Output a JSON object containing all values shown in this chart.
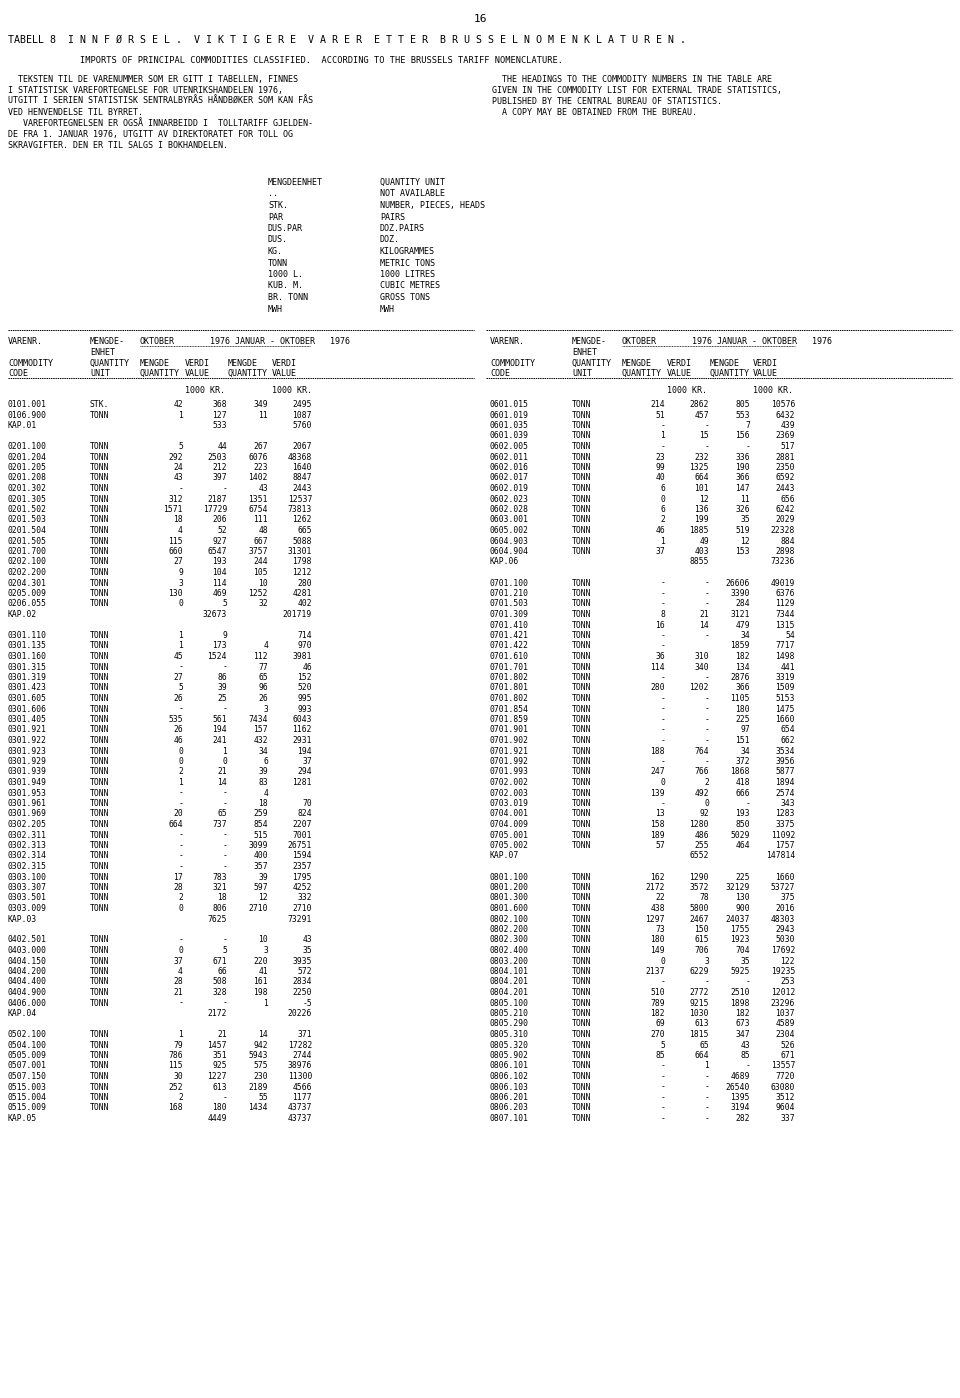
{
  "page_number": "16",
  "title": "TABELL 8  I N N F Ø R S E L .  V I K T I G E R E  V A R E R  E T T E R  B R U S S E L N O M E N K L A T U R E N .",
  "subtitle": "         IMPORTS OF PRINCIPAL COMMODITIES CLASSIFIED.  ACCORDING TO THE BRUSSELS TARIFF NOMENCLATURE.",
  "left_para": [
    "  TEKSTEN TIL DE VARENUMMER SOM ER GITT I TABELLEN, FINNES",
    "I STATISTISK VAREFORTEGNELSE FOR UTENRIKSHANDELEN 1976,",
    "UTGITT I SERIEN STATISTISK SENTRALBYRÅS HÅNDBØKER SOM KAN FÅS",
    "VED HENVENDELSE TIL BYRRET.",
    "   VAREFORTEGNELSEN ER OGSÅ INNARBEIDD I  TOLLTARIFF GJELDEN-",
    "DE FRA 1. JANUAR 1976, UTGITT AV DIREKTORATET FOR TOLL OG",
    "SKRAVGIFTER. DEN ER TIL SALGS I BOKHANDELEN."
  ],
  "right_para": [
    "  THE HEADINGS TO THE COMMODITY NUMBERS IN THE TABLE ARE",
    "GIVEN IN THE COMMODITY LIST FOR EXTERNAL TRADE STATISTICS,",
    "PUBLISHED BY THE CENTRAL BUREAU OF STATISTICS.",
    "  A COPY MAY BE OBTAINED FROM THE BUREAU."
  ],
  "units_left": [
    "MENGDEENHET",
    "..",
    "STK.",
    "PAR",
    "DUS.PAR",
    "DUS.",
    "KG.",
    "TONN",
    "1000 L.",
    "KUB. M.",
    "BR. TONN",
    "MWH"
  ],
  "units_right": [
    "QUANTITY UNIT",
    "NOT AVAILABLE",
    "NUMBER, PIECES, HEADS",
    "PAIRS",
    "DOZ.PAIRS",
    "DOZ.",
    "KILOGRAMMES",
    "METRIC TONS",
    "1000 LITRES",
    "CUBIC METRES",
    "GROSS TONS",
    "MWH"
  ],
  "table_data": [
    [
      "0101.001",
      "STK.",
      "42",
      "368",
      "349",
      "2495",
      "0601.015",
      "TONN",
      "214",
      "2862",
      "805",
      "10576"
    ],
    [
      "0106.900",
      "TONN",
      "1",
      "127",
      "11",
      "1087",
      "0601.019",
      "TONN",
      "51",
      "457",
      "553",
      "6432"
    ],
    [
      "KAP.01",
      "",
      "",
      "533",
      "",
      "5760",
      "0601.035",
      "TONN",
      "-",
      "-",
      "7",
      "439"
    ],
    [
      "",
      "",
      "",
      "",
      "",
      "",
      "0601.039",
      "TONN",
      "1",
      "15",
      "156",
      "2369"
    ],
    [
      "0201.100",
      "TONN",
      "5",
      "44",
      "267",
      "2067",
      "0602.005",
      "TONN",
      "-",
      "-",
      "-",
      "517"
    ],
    [
      "0201.204",
      "TONN",
      "292",
      "2503",
      "6076",
      "48368",
      "0602.011",
      "TONN",
      "23",
      "232",
      "336",
      "2881"
    ],
    [
      "0201.205",
      "TONN",
      "24",
      "212",
      "223",
      "1640",
      "0602.016",
      "TONN",
      "99",
      "1325",
      "190",
      "2350"
    ],
    [
      "0201.208",
      "TONN",
      "43",
      "397",
      "1402",
      "8847",
      "0602.017",
      "TONN",
      "40",
      "664",
      "366",
      "6592"
    ],
    [
      "0201.302",
      "TONN",
      "-",
      "-",
      "43",
      "2443",
      "0602.019",
      "TONN",
      "6",
      "101",
      "147",
      "2443"
    ],
    [
      "0201.305",
      "TONN",
      "312",
      "2187",
      "1351",
      "12537",
      "0602.023",
      "TONN",
      "0",
      "12",
      "11",
      "656"
    ],
    [
      "0201.502",
      "TONN",
      "1571",
      "17729",
      "6754",
      "73813",
      "0602.028",
      "TONN",
      "6",
      "136",
      "326",
      "6242"
    ],
    [
      "0201.503",
      "TONN",
      "18",
      "206",
      "111",
      "1262",
      "0603.001",
      "TONN",
      "2",
      "199",
      "35",
      "2029"
    ],
    [
      "0201.504",
      "TONN",
      "4",
      "52",
      "48",
      "665",
      "0605.002",
      "TONN",
      "46",
      "1885",
      "519",
      "22328"
    ],
    [
      "0201.505",
      "TONN",
      "115",
      "927",
      "667",
      "5088",
      "0604.903",
      "TONN",
      "1",
      "49",
      "12",
      "884"
    ],
    [
      "0201.700",
      "TONN",
      "660",
      "6547",
      "3757",
      "31301",
      "0604.904",
      "TONN",
      "37",
      "403",
      "153",
      "2898"
    ],
    [
      "0202.100",
      "TONN",
      "27",
      "193",
      "244",
      "1798",
      "KAP.06",
      "",
      "",
      "8855",
      "",
      "73236"
    ],
    [
      "0202.200",
      "TONN",
      "9",
      "104",
      "105",
      "1212",
      "",
      "",
      "",
      "",
      "",
      ""
    ],
    [
      "0204.301",
      "TONN",
      "3",
      "114",
      "10",
      "280",
      "0701.100",
      "TONN",
      "-",
      "-",
      "26606",
      "49019"
    ],
    [
      "0205.009",
      "TONN",
      "130",
      "469",
      "1252",
      "4281",
      "0701.210",
      "TONN",
      "-",
      "-",
      "3390",
      "6376"
    ],
    [
      "0206.055",
      "TONN",
      "0",
      "5",
      "32",
      "402",
      "0701.503",
      "TONN",
      "-",
      "-",
      "284",
      "1129"
    ],
    [
      "KAP.02",
      "",
      "",
      "32673",
      "",
      "201719",
      "0701.309",
      "TONN",
      "8",
      "21",
      "3121",
      "7344"
    ],
    [
      "",
      "",
      "",
      "",
      "",
      "",
      "0701.410",
      "TONN",
      "16",
      "14",
      "479",
      "1315"
    ],
    [
      "0301.110",
      "TONN",
      "1",
      "9",
      "",
      "714",
      "0701.421",
      "TONN",
      "-",
      "-",
      "34",
      "54"
    ],
    [
      "0301.135",
      "TONN",
      "1",
      "173",
      "4",
      "970",
      "0701.422",
      "TONN",
      "-",
      "",
      "1859",
      "7717"
    ],
    [
      "0301.160",
      "TONN",
      "45",
      "1524",
      "112",
      "3981",
      "0701.610",
      "TONN",
      "36",
      "310",
      "182",
      "1498"
    ],
    [
      "0301.315",
      "TONN",
      "-",
      "-",
      "77",
      "46",
      "0701.701",
      "TONN",
      "114",
      "340",
      "134",
      "441"
    ],
    [
      "0301.319",
      "TONN",
      "27",
      "86",
      "65",
      "152",
      "0701.802",
      "TONN",
      "-",
      "-",
      "2876",
      "3319"
    ],
    [
      "0301.423",
      "TONN",
      "5",
      "39",
      "96",
      "520",
      "0701.801",
      "TONN",
      "280",
      "1202",
      "366",
      "1509"
    ],
    [
      "0301.605",
      "TONN",
      "26",
      "25",
      "26",
      "995",
      "0701.802",
      "TONN",
      "-",
      "-",
      "1105",
      "5153"
    ],
    [
      "0301.606",
      "TONN",
      "-",
      "-",
      "3",
      "993",
      "0701.854",
      "TONN",
      "-",
      "-",
      "180",
      "1475"
    ],
    [
      "0301.405",
      "TONN",
      "535",
      "561",
      "7434",
      "6043",
      "0701.859",
      "TONN",
      "-",
      "-",
      "225",
      "1660"
    ],
    [
      "0301.921",
      "TONN",
      "26",
      "194",
      "157",
      "1162",
      "0701.901",
      "TONN",
      "-",
      "-",
      "97",
      "654"
    ],
    [
      "0301.922",
      "TONN",
      "46",
      "241",
      "432",
      "2931",
      "0701.902",
      "TONN",
      "-",
      "-",
      "151",
      "662"
    ],
    [
      "0301.923",
      "TONN",
      "0",
      "1",
      "34",
      "194",
      "0701.921",
      "TONN",
      "188",
      "764",
      "34",
      "3534"
    ],
    [
      "0301.929",
      "TONN",
      "0",
      "0",
      "6",
      "37",
      "0701.992",
      "TONN",
      "-",
      "-",
      "372",
      "3956"
    ],
    [
      "0301.939",
      "TONN",
      "2",
      "21",
      "39",
      "294",
      "0701.993",
      "TONN",
      "247",
      "766",
      "1868",
      "5877"
    ],
    [
      "0301.949",
      "TONN",
      "1",
      "14",
      "83",
      "1281",
      "0702.002",
      "TONN",
      "0",
      "2",
      "418",
      "1894"
    ],
    [
      "0301.953",
      "TONN",
      "-",
      "-",
      "4",
      "",
      "0702.003",
      "TONN",
      "139",
      "492",
      "666",
      "2574"
    ],
    [
      "0301.961",
      "TONN",
      "-",
      "-",
      "18",
      "70",
      "0703.019",
      "TONN",
      "-",
      "0",
      "-",
      "343"
    ],
    [
      "0301.969",
      "TONN",
      "20",
      "65",
      "259",
      "824",
      "0704.001",
      "TONN",
      "13",
      "92",
      "193",
      "1283"
    ],
    [
      "0302.205",
      "TONN",
      "664",
      "737",
      "854",
      "2207",
      "0704.009",
      "TONN",
      "158",
      "1280",
      "850",
      "3375"
    ],
    [
      "0302.311",
      "TONN",
      "-",
      "-",
      "515",
      "7001",
      "0705.001",
      "TONN",
      "189",
      "486",
      "5029",
      "11092"
    ],
    [
      "0302.313",
      "TONN",
      "-",
      "-",
      "3099",
      "26751",
      "0705.002",
      "TONN",
      "57",
      "255",
      "464",
      "1757"
    ],
    [
      "0302.314",
      "TONN",
      "-",
      "-",
      "400",
      "1594",
      "KAP.07",
      "",
      "",
      "6552",
      "",
      "147814"
    ],
    [
      "0302.315",
      "TONN",
      "-",
      "-",
      "357",
      "2357",
      "",
      "",
      "",
      "",
      "",
      ""
    ],
    [
      "0303.100",
      "TONN",
      "17",
      "783",
      "39",
      "1795",
      "0801.100",
      "TONN",
      "162",
      "1290",
      "225",
      "1660"
    ],
    [
      "0303.307",
      "TONN",
      "28",
      "321",
      "597",
      "4252",
      "0801.200",
      "TONN",
      "2172",
      "3572",
      "32129",
      "53727"
    ],
    [
      "0303.501",
      "TONN",
      "2",
      "18",
      "12",
      "332",
      "0801.300",
      "TONN",
      "22",
      "78",
      "130",
      "375"
    ],
    [
      "0303.009",
      "TONN",
      "0",
      "806",
      "2710",
      "2710",
      "0801.600",
      "TONN",
      "438",
      "5800",
      "900",
      "2016"
    ],
    [
      "KAP.03",
      "",
      "",
      "7625",
      "",
      "73291",
      "0802.100",
      "TONN",
      "1297",
      "2467",
      "24037",
      "48303"
    ],
    [
      "",
      "",
      "",
      "",
      "",
      "",
      "0802.200",
      "TONN",
      "73",
      "150",
      "1755",
      "2943"
    ],
    [
      "0402.501",
      "TONN",
      "-",
      "-",
      "10",
      "43",
      "0802.300",
      "TONN",
      "180",
      "615",
      "1923",
      "5030"
    ],
    [
      "0403.000",
      "TONN",
      "0",
      "5",
      "3",
      "35",
      "0802.400",
      "TONN",
      "149",
      "706",
      "704",
      "17692"
    ],
    [
      "0404.150",
      "TONN",
      "37",
      "671",
      "220",
      "3935",
      "0803.200",
      "TONN",
      "0",
      "3",
      "35",
      "122"
    ],
    [
      "0404.200",
      "TONN",
      "4",
      "66",
      "41",
      "572",
      "0804.101",
      "TONN",
      "2137",
      "6229",
      "5925",
      "19235"
    ],
    [
      "0404.400",
      "TONN",
      "28",
      "508",
      "161",
      "2834",
      "0804.201",
      "TONN",
      "-",
      "-",
      "-",
      "253"
    ],
    [
      "0404.900",
      "TONN",
      "21",
      "328",
      "198",
      "2250",
      "0804.201",
      "TONN",
      "510",
      "2772",
      "2510",
      "12012"
    ],
    [
      "0406.000",
      "TONN",
      "-",
      "-",
      "1",
      "-5",
      "0805.100",
      "TONN",
      "789",
      "9215",
      "1898",
      "23296"
    ],
    [
      "KAP.04",
      "",
      "",
      "2172",
      "",
      "20226",
      "0805.210",
      "TONN",
      "182",
      "1030",
      "182",
      "1037"
    ],
    [
      "",
      "",
      "",
      "",
      "",
      "",
      "0805.290",
      "TONN",
      "69",
      "613",
      "673",
      "4589"
    ],
    [
      "0502.100",
      "TONN",
      "1",
      "21",
      "14",
      "371",
      "0805.310",
      "TONN",
      "270",
      "1815",
      "347",
      "2304"
    ],
    [
      "0504.100",
      "TONN",
      "79",
      "1457",
      "942",
      "17282",
      "0805.320",
      "TONN",
      "5",
      "65",
      "43",
      "526"
    ],
    [
      "0505.009",
      "TONN",
      "786",
      "351",
      "5943",
      "2744",
      "0805.902",
      "TONN",
      "85",
      "664",
      "85",
      "671"
    ],
    [
      "0507.001",
      "TONN",
      "115",
      "925",
      "575",
      "38976",
      "0806.101",
      "TONN",
      "-",
      "1",
      "-",
      "13557"
    ],
    [
      "0507.150",
      "TONN",
      "30",
      "1227",
      "230",
      "11300",
      "0806.102",
      "TONN",
      "-",
      "-",
      "4689",
      "7720"
    ],
    [
      "0515.003",
      "TONN",
      "252",
      "613",
      "2189",
      "4566",
      "0806.103",
      "TONN",
      "-",
      "-",
      "26540",
      "63080"
    ],
    [
      "0515.004",
      "TONN",
      "2",
      "-",
      "55",
      "1177",
      "0806.201",
      "TONN",
      "-",
      "-",
      "1395",
      "3512"
    ],
    [
      "0515.009",
      "TONN",
      "168",
      "180",
      "1434",
      "43737",
      "0806.203",
      "TONN",
      "-",
      "-",
      "3194",
      "9604"
    ],
    [
      "KAP.05",
      "",
      "",
      "4449",
      "",
      "43737",
      "0807.101",
      "TONN",
      "-",
      "-",
      "282",
      "337"
    ]
  ],
  "bg_color": "#ffffff",
  "text_color": "#000000"
}
